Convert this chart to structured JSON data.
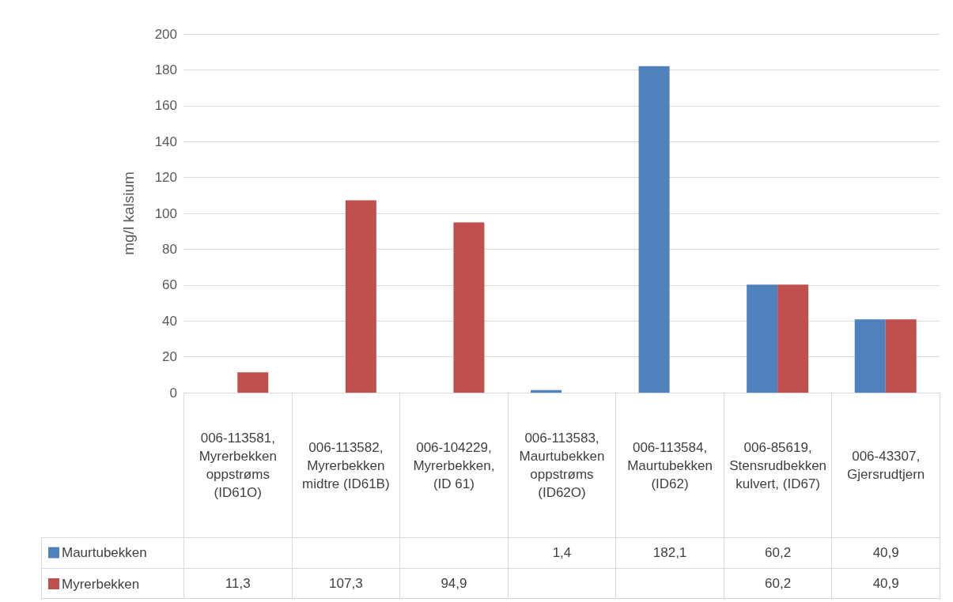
{
  "chart_data": {
    "type": "bar",
    "ylabel": "mg/l kalsium",
    "categories": [
      "006-113581, Myrerbekken oppstrøms (ID61O)",
      "006-113582, Myrerbekken midtre (ID61B)",
      "006-104229, Myrerbekken, (ID 61)",
      "006-113583, Maurtubekken oppstrøms (ID62O)",
      "006-113584, Maurtubekken (ID62)",
      "006-85619, Stensrudbekken kulvert, (ID67)",
      "006-43307, Gjersrudtjern"
    ],
    "series": [
      {
        "name": "Maurtubekken",
        "color": "#4f81bd",
        "values": [
          null,
          null,
          null,
          1.4,
          182.1,
          60.2,
          40.9
        ],
        "value_labels": [
          null,
          null,
          null,
          "1,4",
          "182,1",
          "60,2",
          "40,9"
        ]
      },
      {
        "name": "Myrerbekken",
        "color": "#c0504d",
        "values": [
          11.3,
          107.3,
          94.9,
          null,
          null,
          60.2,
          40.9
        ],
        "value_labels": [
          "11,3",
          "107,3",
          "94,9",
          null,
          null,
          "60,2",
          "40,9"
        ]
      }
    ],
    "ylim": [
      0,
      200
    ],
    "yticks": [
      0,
      20,
      40,
      60,
      80,
      100,
      120,
      140,
      160,
      180,
      200
    ],
    "grid": "y",
    "legend": "bottom left"
  }
}
